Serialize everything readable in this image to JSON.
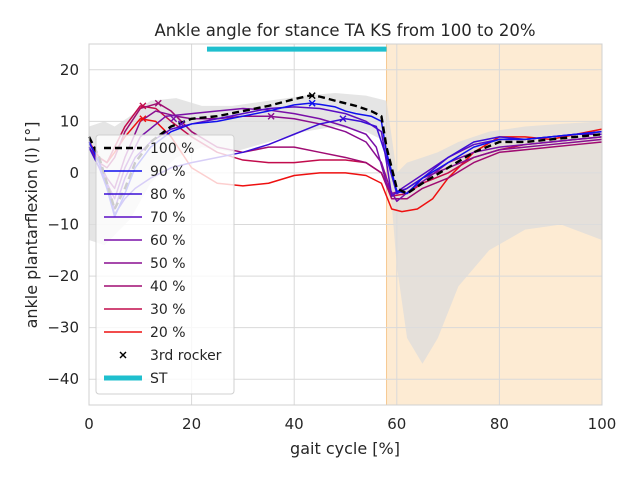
{
  "chart_data": {
    "type": "line",
    "title": "Ankle angle for stance TA KS from 100 to 20%",
    "xlabel": "gait cycle [%]",
    "ylabel": "ankle plantarflexion (l) [°]",
    "xlim": [
      0,
      100
    ],
    "ylim": [
      -45,
      25
    ],
    "xticks": [
      0,
      20,
      40,
      60,
      80,
      100
    ],
    "yticks": [
      -40,
      -30,
      -20,
      -10,
      0,
      10,
      20
    ],
    "grid": true,
    "legend_position": "lower-left",
    "colors": {
      "band": "#dcdcdc",
      "swing_region": "#fdebd3",
      "st_bar": "#1fbfce",
      "grid": "#d9d9d9",
      "baseline": "#000000"
    },
    "swing_region": {
      "x_start": 58
    },
    "st_bar": {
      "y": 24,
      "x_start": 23,
      "x_end": 58
    },
    "band": {
      "x": [
        0,
        3,
        5,
        8,
        12,
        17,
        22,
        28,
        35,
        42,
        48,
        54,
        58,
        60,
        62,
        65,
        68,
        72,
        78,
        85,
        92,
        100
      ],
      "upper": [
        9,
        10,
        9,
        11,
        14,
        14.5,
        13,
        13,
        14,
        15,
        15.5,
        15,
        14,
        0,
        2,
        3,
        4,
        6,
        8,
        9,
        9.5,
        10
      ],
      "lower": [
        -13,
        -14,
        -12,
        -9,
        -2,
        3,
        5,
        4,
        6,
        8,
        9,
        8,
        6,
        -18,
        -32,
        -37,
        -32,
        -22,
        -15,
        -11,
        -10,
        -13
      ]
    },
    "series": [
      {
        "name": "100 %",
        "color": "#000000",
        "dashed": true,
        "x": [
          0,
          2,
          3.5,
          5,
          7,
          9,
          12,
          16,
          20,
          25,
          30,
          35,
          40,
          43,
          45,
          48,
          50,
          52,
          55,
          57,
          58,
          60,
          62,
          65,
          70,
          75,
          80,
          85,
          90,
          95,
          100
        ],
        "y": [
          7,
          3,
          -2,
          -7,
          -3,
          2,
          6,
          9,
          10.5,
          11,
          12,
          13,
          14.3,
          15,
          14.8,
          14,
          13.5,
          13,
          12,
          11,
          5,
          -3,
          -4,
          -2,
          1,
          4,
          6,
          6,
          6.5,
          7,
          7.5
        ],
        "rocker": [
          43.5,
          15
        ]
      },
      {
        "name": "90 %",
        "color": "#1010ee",
        "x": [
          0,
          2,
          3.5,
          5,
          7,
          9,
          12,
          16,
          20,
          25,
          30,
          35,
          40,
          43,
          45,
          48,
          50,
          52,
          55,
          57,
          58,
          60,
          62,
          65,
          70,
          75,
          80,
          85,
          90,
          95,
          100
        ],
        "y": [
          6,
          2,
          -3,
          -8.5,
          -4,
          1,
          5,
          8,
          9.5,
          10,
          11,
          12,
          13.2,
          13.5,
          13.3,
          12.8,
          12,
          11.5,
          11,
          10,
          4,
          -3.5,
          -4,
          -1,
          2,
          5,
          6.5,
          6.5,
          7,
          7.5,
          8
        ],
        "rocker": [
          43.5,
          13.5
        ]
      },
      {
        "name": "80 %",
        "color": "#3a0ed6",
        "x": [
          0,
          2,
          3.5,
          5,
          7,
          9,
          12,
          16,
          20,
          25,
          30,
          35,
          40,
          45,
          50,
          53,
          56,
          58,
          60,
          62,
          65,
          70,
          75,
          80,
          85,
          90,
          95,
          100
        ],
        "y": [
          5,
          1,
          -3,
          -8,
          -5,
          -3,
          -1,
          1,
          2,
          3,
          4,
          5.5,
          7.5,
          9.5,
          10.5,
          10,
          9,
          3,
          -4,
          -3,
          -1,
          3,
          6,
          7,
          6.5,
          7,
          7.5,
          8
        ],
        "rocker": [
          49.5,
          10.5
        ]
      },
      {
        "name": "70 %",
        "color": "#5a0cc4",
        "x": [
          0,
          2,
          3.5,
          5,
          7,
          9,
          12,
          16,
          20,
          25,
          30,
          35,
          40,
          45,
          50,
          54,
          57,
          58,
          59,
          61,
          64,
          70,
          75,
          80,
          85,
          90,
          95,
          100
        ],
        "y": [
          6,
          2,
          -2,
          -7,
          -1,
          3,
          6,
          8.5,
          9.5,
          10.5,
          11.5,
          12.5,
          12.8,
          12.5,
          11.5,
          10,
          8,
          2,
          -4.5,
          -3,
          -1,
          3,
          5.5,
          6.5,
          6.5,
          7,
          7.5,
          7.5
        ],
        "rocker": [
          18,
          9.5
        ]
      },
      {
        "name": "60 %",
        "color": "#7a10a8",
        "x": [
          0,
          2,
          3.5,
          5,
          7,
          10,
          15,
          20,
          25,
          30,
          35,
          40,
          45,
          50,
          54,
          56,
          58,
          60,
          63,
          66,
          70,
          75,
          80,
          85,
          90,
          95,
          100
        ],
        "y": [
          5,
          1,
          -2,
          -5,
          1,
          7,
          11,
          11.5,
          12,
          12.5,
          12.2,
          11.5,
          10.5,
          9,
          7.5,
          5,
          -2,
          -5.5,
          -3,
          -1,
          2,
          4,
          5,
          5.5,
          6,
          6.5,
          7
        ],
        "rocker": [
          16.5,
          10.5
        ]
      },
      {
        "name": "50 %",
        "color": "#8a0e90",
        "x": [
          0,
          2,
          3.5,
          5,
          7,
          10,
          13,
          17,
          20,
          25,
          30,
          35,
          40,
          45,
          50,
          54,
          57,
          59,
          62,
          65,
          70,
          75,
          80,
          85,
          90,
          95,
          100
        ],
        "y": [
          6,
          2,
          -1,
          -3,
          3,
          10,
          12,
          11,
          10.5,
          10.5,
          11,
          11,
          10.5,
          9.5,
          8,
          6,
          2,
          -4,
          -3,
          -1,
          1,
          3,
          4.5,
          5,
          5.5,
          6,
          6.5
        ],
        "rocker": [
          35.5,
          11
        ]
      },
      {
        "name": "40 %",
        "color": "#a00c72",
        "x": [
          0,
          2,
          3.5,
          5,
          7,
          10,
          13.5,
          16,
          20,
          25,
          30,
          35,
          40,
          45,
          50,
          54,
          57,
          59,
          62,
          65,
          70,
          75,
          80,
          85,
          90,
          95,
          100
        ],
        "y": [
          5,
          2,
          1,
          3,
          8,
          12.5,
          13.5,
          12,
          8,
          5,
          4,
          5,
          5,
          4,
          3,
          2,
          0,
          -5,
          -5,
          -3,
          -1,
          2,
          4,
          4.5,
          5,
          5.5,
          6
        ],
        "rocker": [
          13.5,
          13.5
        ]
      },
      {
        "name": "30 %",
        "color": "#c20c4c",
        "x": [
          0,
          2,
          3.5,
          5,
          7,
          10,
          13,
          16,
          20,
          25,
          30,
          35,
          40,
          45,
          50,
          54,
          57,
          59,
          62,
          65,
          70,
          75,
          80,
          85,
          90,
          95,
          100
        ],
        "y": [
          6,
          3,
          2,
          5,
          9,
          13,
          12.5,
          10,
          7,
          4,
          2.5,
          2,
          2,
          2.5,
          2.5,
          2,
          0,
          -4.5,
          -4,
          -2,
          0,
          3,
          4.5,
          5.5,
          6,
          6.5,
          7
        ],
        "rocker": [
          10.5,
          13
        ]
      },
      {
        "name": "20 %",
        "color": "#ee1010",
        "x": [
          0,
          2,
          3.5,
          5,
          7,
          10,
          13,
          16,
          20,
          25,
          30,
          35,
          40,
          45,
          50,
          54,
          57,
          59,
          61,
          64,
          67,
          70,
          75,
          80,
          85,
          90,
          95,
          100
        ],
        "y": [
          6,
          3,
          2,
          4,
          7,
          10.5,
          10,
          7,
          1,
          -2,
          -2.5,
          -2,
          -0.5,
          0,
          0,
          -0.5,
          -2,
          -7,
          -7.5,
          -7,
          -5,
          -1,
          4,
          7,
          7,
          6.5,
          7.5,
          8.5
        ],
        "rocker": [
          10.5,
          10.5
        ]
      }
    ],
    "legend": {
      "rocker_label": "3rd rocker",
      "st_label": "ST"
    }
  }
}
